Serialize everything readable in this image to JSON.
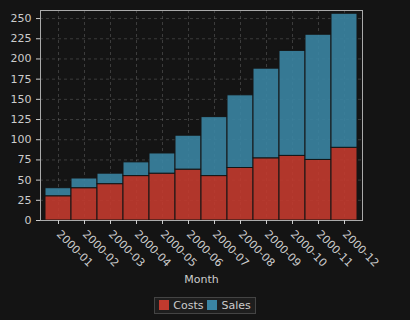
{
  "chart_data": {
    "type": "bar",
    "stacked": true,
    "categories": [
      "2000-01",
      "2000-02",
      "2000-03",
      "2000-04",
      "2000-05",
      "2000-06",
      "2000-07",
      "2000-08",
      "2000-09",
      "2000-10",
      "2000-11",
      "2000-12"
    ],
    "series": [
      {
        "name": "Costs",
        "color": "#c23a2e",
        "values": [
          30,
          40,
          45,
          55,
          58,
          63,
          55,
          65,
          77,
          80,
          75,
          90
        ]
      },
      {
        "name": "Sales",
        "color": "#3a84a2",
        "values": [
          10,
          12,
          13,
          17,
          25,
          42,
          73,
          90,
          111,
          130,
          155,
          166
        ]
      }
    ],
    "x_label": "Month",
    "ylim": [
      0,
      260
    ],
    "yticks": [
      0,
      25,
      50,
      75,
      100,
      125,
      150,
      175,
      200,
      225,
      250
    ],
    "grid": true,
    "legend": "bottom"
  }
}
